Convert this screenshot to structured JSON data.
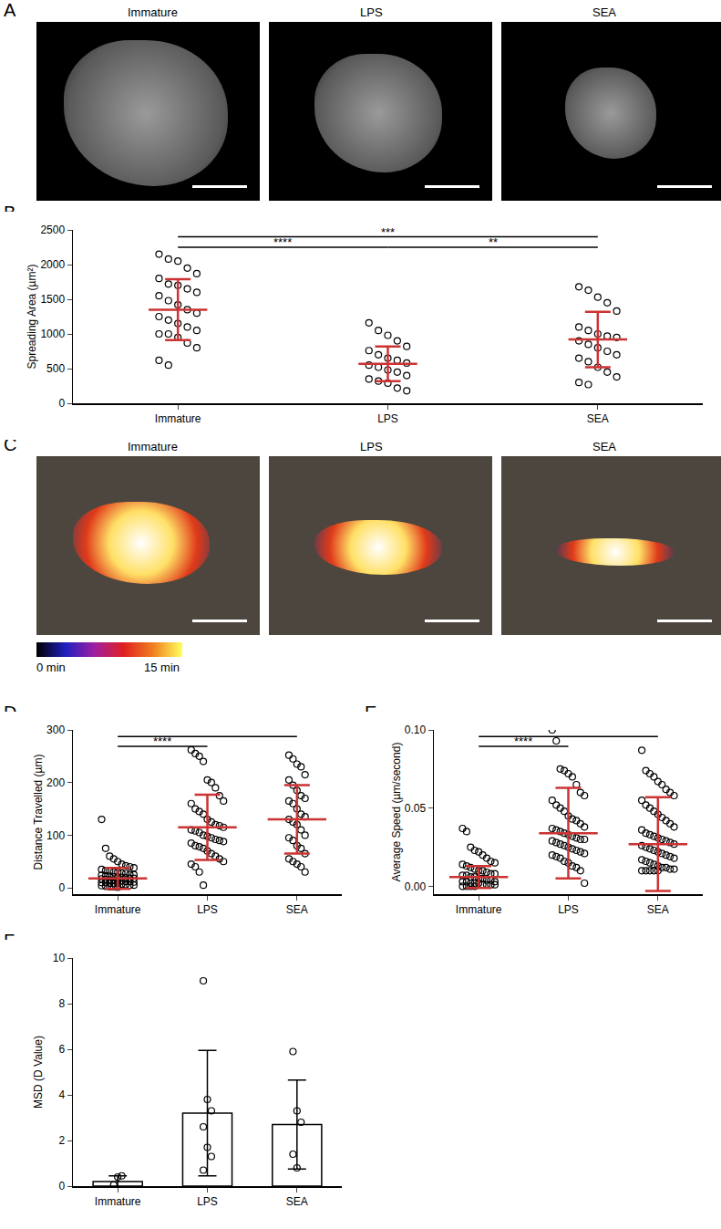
{
  "image_panels": [
    {
      "panel": "A",
      "titles": [
        "Immature",
        "LPS",
        "SEA"
      ]
    },
    {
      "panel": "C",
      "titles": [
        "Immature",
        "LPS",
        "SEA"
      ],
      "colorbar": {
        "min_label": "0 min",
        "max_label": "15 min"
      }
    }
  ],
  "chart_data": [
    {
      "panel": "B",
      "type": "scatter",
      "marker": "circle-open",
      "color": "#cc3333",
      "categories": [
        "Immature",
        "LPS",
        "SEA"
      ],
      "y_label": "Spreading Area (µm²)",
      "ylim": [
        0,
        2500
      ],
      "yticks": [
        0,
        500,
        1000,
        1500,
        2000,
        2500
      ],
      "values": [
        [
          2150,
          2080,
          2050,
          1950,
          1870,
          1800,
          1720,
          1700,
          1650,
          1600,
          1550,
          1480,
          1420,
          1350,
          1300,
          1250,
          1200,
          1150,
          1100,
          1050,
          1000,
          1000,
          950,
          870,
          800,
          620,
          550
        ],
        [
          1160,
          1050,
          980,
          900,
          820,
          760,
          700,
          650,
          620,
          580,
          550,
          520,
          480,
          450,
          400,
          350,
          320,
          290,
          220,
          180
        ],
        [
          1680,
          1630,
          1530,
          1450,
          1330,
          1100,
          1050,
          1000,
          970,
          950,
          900,
          850,
          800,
          750,
          700,
          650,
          600,
          520,
          450,
          380,
          300,
          270
        ]
      ],
      "mean": [
        1350,
        570,
        920
      ],
      "sd": [
        440,
        250,
        400
      ],
      "significance": [
        {
          "from": "Immature",
          "to": "LPS",
          "label": "****"
        },
        {
          "from": "LPS",
          "to": "SEA",
          "label": "**"
        },
        {
          "from": "Immature",
          "to": "SEA",
          "label": "***"
        }
      ]
    },
    {
      "panel": "D",
      "type": "scatter",
      "marker": "circle-open",
      "color": "#cc3333",
      "categories": [
        "Immature",
        "LPS",
        "SEA"
      ],
      "y_label": "Distance Travelled (µm)",
      "ylim": [
        -12,
        300
      ],
      "yticks": [
        0,
        100,
        200,
        300
      ],
      "values": [
        [
          130,
          75,
          60,
          55,
          50,
          45,
          42,
          40,
          38,
          35,
          33,
          32,
          30,
          30,
          28,
          27,
          25,
          25,
          24,
          23,
          22,
          21,
          20,
          20,
          19,
          18,
          18,
          17,
          16,
          15,
          15,
          14,
          13,
          12,
          12,
          11,
          10,
          10,
          9,
          8,
          8,
          7,
          6,
          5,
          5,
          4,
          3,
          2,
          2,
          1
        ],
        [
          262,
          255,
          250,
          240,
          205,
          200,
          190,
          175,
          165,
          160,
          150,
          145,
          140,
          130,
          125,
          120,
          118,
          115,
          110,
          108,
          105,
          100,
          98,
          95,
          92,
          90,
          88,
          85,
          80,
          78,
          75,
          70,
          65,
          60,
          55,
          50,
          45,
          40,
          30,
          5
        ],
        [
          252,
          245,
          235,
          230,
          215,
          205,
          195,
          185,
          175,
          170,
          165,
          160,
          150,
          140,
          135,
          130,
          125,
          120,
          110,
          100,
          95,
          90,
          80,
          75,
          65,
          55,
          50,
          45,
          40,
          30
        ]
      ],
      "mean": [
        18,
        115,
        130
      ],
      "sd": [
        20,
        62,
        65
      ],
      "significance": [
        {
          "from": "Immature",
          "to": "LPS",
          "label": "****"
        },
        {
          "from": "Immature",
          "to": "SEA"
        }
      ]
    },
    {
      "panel": "E",
      "type": "scatter",
      "marker": "circle-open",
      "color": "#cc3333",
      "categories": [
        "Immature",
        "LPS",
        "SEA"
      ],
      "y_label": "Average Speed (µm/second)",
      "ylim": [
        -0.005,
        0.1
      ],
      "yticks": [
        {
          "value": 0,
          "label": "0.00"
        },
        {
          "value": 0.05,
          "label": "0.05"
        },
        {
          "value": 0.1,
          "label": "0.10"
        }
      ],
      "values": [
        [
          0.037,
          0.035,
          0.025,
          0.023,
          0.022,
          0.02,
          0.018,
          0.016,
          0.015,
          0.014,
          0.013,
          0.012,
          0.011,
          0.01,
          0.01,
          0.009,
          0.008,
          0.008,
          0.007,
          0.007,
          0.006,
          0.006,
          0.005,
          0.005,
          0.004,
          0.004,
          0.003,
          0.003,
          0.003,
          0.002,
          0.002,
          0.002,
          0.001,
          0.001,
          0.001,
          0.001,
          0,
          0,
          0,
          0
        ],
        [
          0.1,
          0.093,
          0.075,
          0.074,
          0.072,
          0.07,
          0.065,
          0.06,
          0.058,
          0.055,
          0.052,
          0.05,
          0.048,
          0.045,
          0.043,
          0.042,
          0.04,
          0.038,
          0.037,
          0.036,
          0.035,
          0.034,
          0.033,
          0.032,
          0.031,
          0.03,
          0.03,
          0.029,
          0.028,
          0.027,
          0.026,
          0.025,
          0.024,
          0.023,
          0.022,
          0.021,
          0.02,
          0.019,
          0.018,
          0.016,
          0.015,
          0.013,
          0.012,
          0.01,
          0.002
        ],
        [
          0.087,
          0.074,
          0.072,
          0.07,
          0.067,
          0.065,
          0.062,
          0.06,
          0.058,
          0.055,
          0.052,
          0.05,
          0.048,
          0.046,
          0.044,
          0.042,
          0.04,
          0.038,
          0.036,
          0.034,
          0.033,
          0.032,
          0.031,
          0.03,
          0.029,
          0.028,
          0.027,
          0.026,
          0.025,
          0.024,
          0.023,
          0.022,
          0.021,
          0.02,
          0.019,
          0.018,
          0.017,
          0.016,
          0.015,
          0.014,
          0.013,
          0.012,
          0.012,
          0.011,
          0.011,
          0.01,
          0.01,
          0.01,
          0.01,
          0.01
        ]
      ],
      "mean": [
        0.006,
        0.034,
        0.027
      ],
      "sd": [
        0.007,
        0.029,
        0.03
      ],
      "significance": [
        {
          "from": "Immature",
          "to": "LPS",
          "label": "****"
        },
        {
          "from": "Immature",
          "to": "SEA"
        }
      ]
    },
    {
      "panel": "F",
      "type": "bar",
      "marker": "circle-open",
      "color": "#000000",
      "categories": [
        "Immature",
        "LPS",
        "SEA"
      ],
      "y_label": "MSD (D Value)",
      "ylim": [
        0,
        10
      ],
      "yticks": [
        0,
        2,
        4,
        6,
        8,
        10
      ],
      "values": [
        [
          0.05,
          0.4,
          0.45
        ],
        [
          9.0,
          3.8,
          3.3,
          2.6,
          1.7,
          1.3,
          0.7
        ],
        [
          5.9,
          3.3,
          2.8,
          1.4,
          0.8
        ]
      ],
      "mean": [
        0.2,
        3.2,
        2.7
      ],
      "sd": [
        0.25,
        2.75,
        1.95
      ]
    }
  ]
}
